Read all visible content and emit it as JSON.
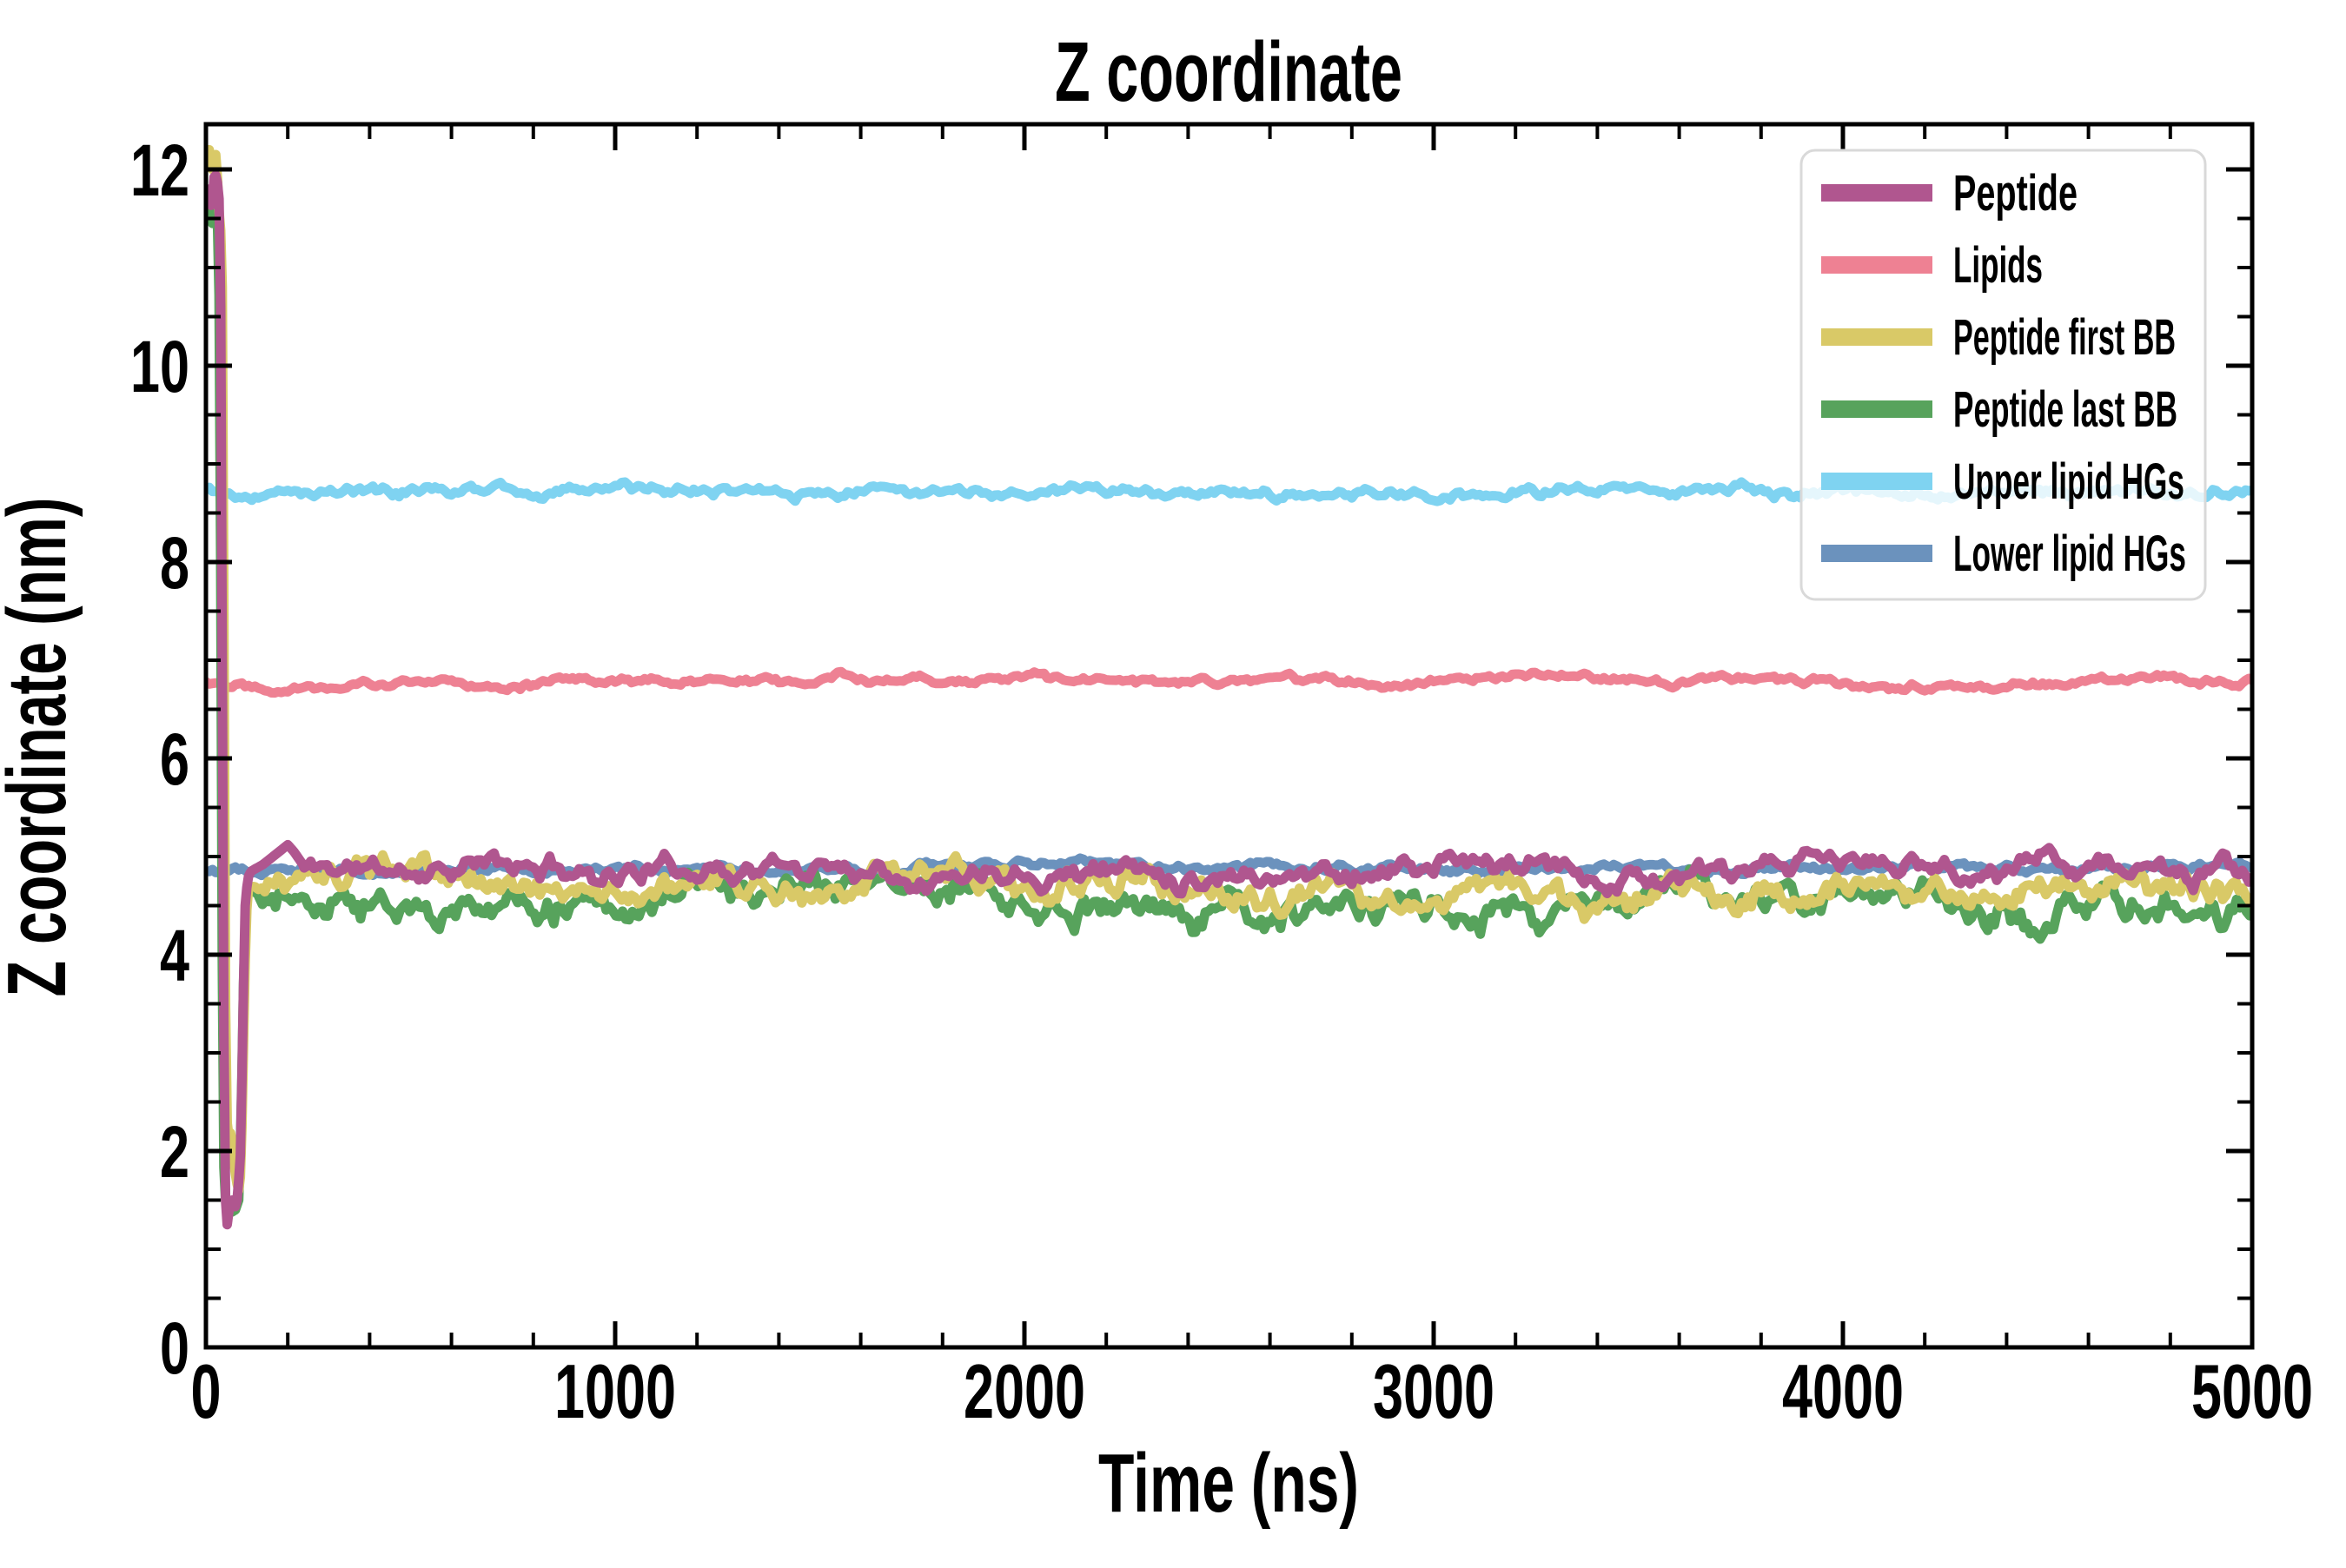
{
  "chart_data": {
    "type": "line",
    "title": "Z coordinate",
    "xlabel": "Time (ns)",
    "ylabel": "Z coordinate (nm)",
    "xlim": [
      0,
      5000
    ],
    "ylim": [
      0,
      12.46
    ],
    "x_major_ticks": [
      0,
      1000,
      2000,
      3000,
      4000,
      5000
    ],
    "x_minor_step": 200,
    "y_major_ticks": [
      0,
      2,
      4,
      6,
      8,
      10,
      12
    ],
    "y_minor_step": 0.5,
    "grid": false,
    "tick_direction": "in",
    "axis_color": "#000000",
    "background": "#ffffff",
    "legend": {
      "position": "upper right",
      "entries": [
        "Peptide",
        "Lipids",
        "Peptide first BB",
        "Peptide last BB",
        "Upper lipid HGs",
        "Lower lipid HGs"
      ],
      "fill_opacity": 0.8,
      "border_color": "#d9d9d9"
    },
    "series": [
      {
        "name": "Peptide",
        "color": "#b0568f",
        "linewidth": 11,
        "seed": 11,
        "transient": [
          [
            0,
            11.65
          ],
          [
            8,
            11.8
          ],
          [
            14,
            11.55
          ],
          [
            20,
            11.92
          ],
          [
            26,
            11.95
          ],
          [
            32,
            11.7
          ],
          [
            36,
            10.6
          ],
          [
            40,
            7.0
          ],
          [
            44,
            3.2
          ],
          [
            48,
            1.5
          ],
          [
            52,
            1.25
          ],
          [
            58,
            1.45
          ],
          [
            64,
            1.5
          ],
          [
            70,
            1.4
          ],
          [
            76,
            1.5
          ],
          [
            82,
            1.8
          ],
          [
            86,
            2.1
          ],
          [
            90,
            3.3
          ],
          [
            96,
            4.5
          ],
          [
            102,
            4.78
          ],
          [
            110,
            4.85
          ],
          [
            140,
            4.92
          ],
          [
            170,
            5.02
          ],
          [
            200,
            5.12
          ],
          [
            215,
            5.05
          ],
          [
            240,
            4.9
          ]
        ],
        "flat_from": 240,
        "flat_level": 4.88,
        "noise_amplitude": 0.1
      },
      {
        "name": "Lipids",
        "color": "#ee8193",
        "linewidth": 11,
        "seed": 22,
        "transient": [],
        "flat_from": 0,
        "flat_level": 6.78,
        "noise_amplitude": 0.035
      },
      {
        "name": "Peptide first BB",
        "color": "#d9c967",
        "linewidth": 11,
        "seed": 33,
        "transient": [
          [
            0,
            12.1
          ],
          [
            8,
            12.2
          ],
          [
            16,
            12.0
          ],
          [
            24,
            12.15
          ],
          [
            30,
            11.8
          ],
          [
            34,
            11.35
          ],
          [
            38,
            11.4
          ],
          [
            42,
            10.2
          ],
          [
            46,
            4.6
          ],
          [
            50,
            2.35
          ],
          [
            56,
            2.15
          ],
          [
            62,
            2.2
          ],
          [
            68,
            1.9
          ],
          [
            74,
            1.7
          ],
          [
            80,
            1.6
          ],
          [
            86,
            1.8
          ],
          [
            92,
            3.1
          ],
          [
            98,
            4.35
          ],
          [
            104,
            4.68
          ],
          [
            120,
            4.7
          ]
        ],
        "flat_from": 120,
        "flat_level": 4.66,
        "noise_amplitude": 0.13
      },
      {
        "name": "Peptide last BB",
        "color": "#57a35c",
        "linewidth": 11,
        "seed": 44,
        "transient": [
          [
            0,
            11.5
          ],
          [
            8,
            11.55
          ],
          [
            16,
            11.45
          ],
          [
            24,
            11.6
          ],
          [
            30,
            11.45
          ],
          [
            34,
            10.0
          ],
          [
            38,
            6.0
          ],
          [
            42,
            2.0
          ],
          [
            48,
            1.5
          ],
          [
            56,
            1.42
          ],
          [
            64,
            1.38
          ],
          [
            72,
            1.4
          ],
          [
            80,
            1.5
          ],
          [
            86,
            2.3
          ],
          [
            92,
            3.7
          ],
          [
            98,
            4.55
          ],
          [
            104,
            4.7
          ],
          [
            130,
            4.6
          ]
        ],
        "flat_from": 130,
        "flat_level": 4.55,
        "noise_amplitude": 0.15
      },
      {
        "name": "Upper lipid HGs",
        "color": "#7fd3f1",
        "linewidth": 11,
        "seed": 55,
        "transient": [],
        "flat_from": 0,
        "flat_level": 8.73,
        "noise_amplitude": 0.045
      },
      {
        "name": "Lower lipid HGs",
        "color": "#6b92bd",
        "linewidth": 11,
        "seed": 66,
        "transient": [],
        "flat_from": 0,
        "flat_level": 4.88,
        "noise_amplitude": 0.035
      }
    ],
    "draw_order": [
      "Upper lipid HGs",
      "Lipids",
      "Lower lipid HGs",
      "Peptide last BB",
      "Peptide first BB",
      "Peptide"
    ]
  }
}
